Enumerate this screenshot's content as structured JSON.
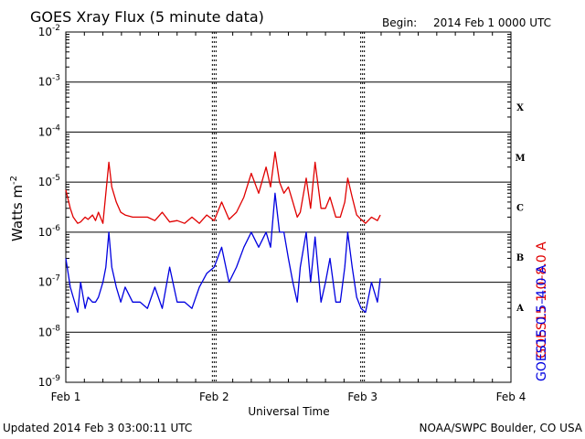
{
  "header": {
    "title": "GOES Xray Flux (5 minute data)",
    "begin_label": "Begin:",
    "begin_value": "2014 Feb 1 0000 UTC"
  },
  "footer": {
    "updated": "Updated 2014 Feb  3 03:00:11 UTC",
    "credit": "NOAA/SWPC Boulder, CO USA"
  },
  "colors": {
    "long_channel": "#e00000",
    "short_channel": "#0000e0",
    "frame": "#000000"
  },
  "chart_data": {
    "type": "line",
    "ylabel": "Watts m",
    "ylabel_sup": "-2",
    "xlabel": "Universal Time",
    "y_scale": "log",
    "ylim": [
      1e-09,
      0.01
    ],
    "y_ticks": [
      {
        "base": "10",
        "exp": "-2",
        "value": 0.01
      },
      {
        "base": "10",
        "exp": "-3",
        "value": 0.001
      },
      {
        "base": "10",
        "exp": "-4",
        "value": 0.0001
      },
      {
        "base": "10",
        "exp": "-5",
        "value": 1e-05
      },
      {
        "base": "10",
        "exp": "-6",
        "value": 1e-06
      },
      {
        "base": "10",
        "exp": "-7",
        "value": 1e-07
      },
      {
        "base": "10",
        "exp": "-8",
        "value": 1e-08
      },
      {
        "base": "10",
        "exp": "-9",
        "value": 1e-09
      }
    ],
    "xlim": [
      0,
      3
    ],
    "x_ticks": [
      {
        "label": "Feb 1",
        "value": 0
      },
      {
        "label": "Feb 2",
        "value": 1
      },
      {
        "label": "Feb 3",
        "value": 2
      },
      {
        "label": "Feb 4",
        "value": 3
      }
    ],
    "grid": "horizontal at each decade, dashed day markers",
    "class_labels": [
      {
        "label": "X",
        "low": 0.0001,
        "high": 0.001
      },
      {
        "label": "M",
        "low": 1e-05,
        "high": 0.0001
      },
      {
        "label": "C",
        "low": 1e-06,
        "high": 1e-05
      },
      {
        "label": "B",
        "low": 1e-07,
        "high": 1e-06
      },
      {
        "label": "A",
        "low": 1e-08,
        "high": 1e-07
      }
    ],
    "series": [
      {
        "name": "GOES15 1.0–8.0 A",
        "color": "#e00000",
        "x": [
          0.0,
          0.03,
          0.05,
          0.08,
          0.1,
          0.13,
          0.15,
          0.18,
          0.2,
          0.22,
          0.25,
          0.27,
          0.29,
          0.31,
          0.34,
          0.37,
          0.4,
          0.45,
          0.5,
          0.55,
          0.6,
          0.65,
          0.7,
          0.75,
          0.8,
          0.85,
          0.9,
          0.95,
          1.0,
          1.05,
          1.1,
          1.15,
          1.2,
          1.25,
          1.3,
          1.35,
          1.38,
          1.41,
          1.44,
          1.47,
          1.5,
          1.53,
          1.56,
          1.58,
          1.62,
          1.65,
          1.68,
          1.72,
          1.75,
          1.78,
          1.82,
          1.85,
          1.88,
          1.9,
          1.93,
          1.96,
          1.99,
          2.02,
          2.06,
          2.1,
          2.12
        ],
        "values": [
          7e-06,
          3e-06,
          2e-06,
          1.5e-06,
          1.6e-06,
          2e-06,
          1.8e-06,
          2.2e-06,
          1.7e-06,
          2.5e-06,
          1.5e-06,
          6e-06,
          2.5e-05,
          8e-06,
          4e-06,
          2.5e-06,
          2.2e-06,
          2e-06,
          2e-06,
          2e-06,
          1.7e-06,
          2.5e-06,
          1.6e-06,
          1.7e-06,
          1.5e-06,
          2e-06,
          1.5e-06,
          2.2e-06,
          1.7e-06,
          4e-06,
          1.8e-06,
          2.5e-06,
          5e-06,
          1.5e-05,
          6e-06,
          2e-05,
          8e-06,
          4e-05,
          1e-05,
          6e-06,
          8e-06,
          4e-06,
          2e-06,
          2.5e-06,
          1.2e-05,
          3e-06,
          2.5e-05,
          3e-06,
          3e-06,
          5e-06,
          2e-06,
          2e-06,
          4e-06,
          1.2e-05,
          5e-06,
          2.2e-06,
          1.8e-06,
          1.5e-06,
          2e-06,
          1.7e-06,
          2.2e-06
        ]
      },
      {
        "name": "GOES15 0.5–4.0 A",
        "color": "#0000e0",
        "x": [
          0.0,
          0.03,
          0.05,
          0.08,
          0.1,
          0.13,
          0.15,
          0.18,
          0.2,
          0.22,
          0.25,
          0.27,
          0.29,
          0.31,
          0.34,
          0.37,
          0.4,
          0.45,
          0.5,
          0.55,
          0.6,
          0.65,
          0.7,
          0.75,
          0.8,
          0.85,
          0.9,
          0.95,
          1.0,
          1.05,
          1.1,
          1.15,
          1.2,
          1.25,
          1.3,
          1.35,
          1.38,
          1.41,
          1.44,
          1.47,
          1.5,
          1.53,
          1.56,
          1.58,
          1.62,
          1.65,
          1.68,
          1.72,
          1.75,
          1.78,
          1.82,
          1.85,
          1.88,
          1.9,
          1.93,
          1.96,
          1.99,
          2.02,
          2.06,
          2.1,
          2.12
        ],
        "values": [
          3e-07,
          8e-08,
          5e-08,
          2.5e-08,
          1e-07,
          3e-08,
          5e-08,
          4e-08,
          4e-08,
          5e-08,
          1e-07,
          2e-07,
          1e-06,
          2e-07,
          8e-08,
          4e-08,
          8e-08,
          4e-08,
          4e-08,
          3e-08,
          8e-08,
          3e-08,
          2e-07,
          4e-08,
          4e-08,
          3e-08,
          8e-08,
          1.5e-07,
          2e-07,
          5e-07,
          1e-07,
          2e-07,
          5e-07,
          1e-06,
          5e-07,
          1e-06,
          5e-07,
          6e-06,
          1e-06,
          1e-06,
          3e-07,
          1e-07,
          4e-08,
          2e-07,
          1e-06,
          1e-07,
          8e-07,
          4e-08,
          1e-07,
          3e-07,
          4e-08,
          4e-08,
          2e-07,
          1e-06,
          2e-07,
          5e-08,
          3e-08,
          2.5e-08,
          1e-07,
          4e-08,
          1.2e-07
        ]
      }
    ]
  }
}
